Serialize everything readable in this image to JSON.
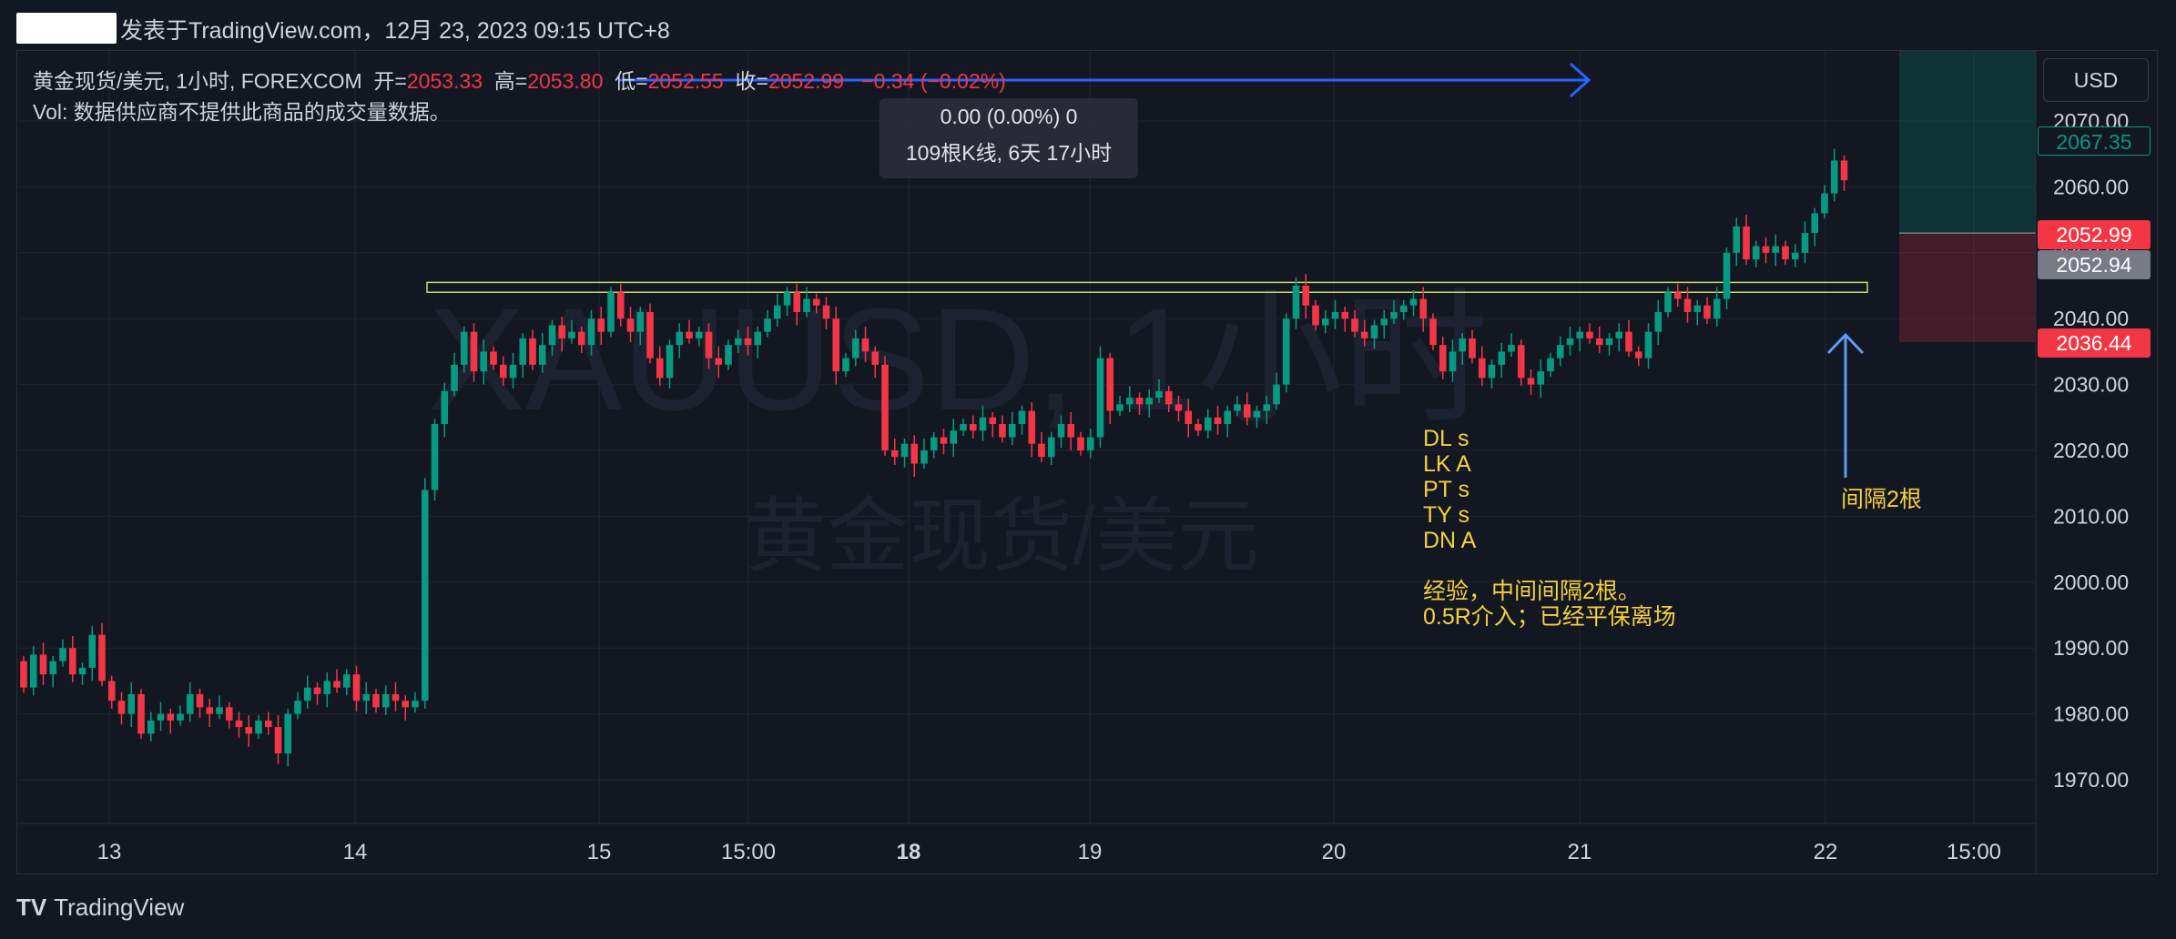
{
  "header": {
    "publish_text": "发表于TradingView.com，12月 23, 2023 09:15 UTC+8"
  },
  "legend": {
    "symbol": "黄金现货/美元, 1小时, FOREXCOM",
    "open_label": "开=",
    "open": "2053.33",
    "high_label": "高=",
    "high": "2053.80",
    "low_label": "低=",
    "low": "2052.55",
    "close_label": "收=",
    "close": "2052.99",
    "change": "−0.34 (−0.02%)",
    "vol_line": "Vol: 数据供应商不提供此商品的成交量数据。"
  },
  "measure": {
    "line1": "0.00 (0.00%) 0",
    "line2": "109根K线, 6天 17小时"
  },
  "toolbar": {
    "currency": "USD"
  },
  "watermark": {
    "symbol": "XAUUSD, 1小时",
    "name": "黄金现货/美元"
  },
  "price_labels": {
    "current_last": "2067.35",
    "entry": "2052.99",
    "stop_mark": "2052.94",
    "stop": "2036.44"
  },
  "notes": "DL s\nLK A\nPT s\nTY s\nDN A\n\n经验，中间间隔2根。\n0.5R介入；已经平保离场",
  "gap_label": "间隔2根",
  "footer": {
    "brand": "TradingView"
  },
  "colors": {
    "up": "#089981",
    "down": "#f23645",
    "background": "#131722",
    "grid": "#1f2430",
    "annotation": "#f4d03f",
    "arrow": "#2962ff"
  },
  "chart_data": {
    "type": "candlestick",
    "symbol": "XAUUSD",
    "timeframe": "1H",
    "ylim": [
      1960,
      2075
    ],
    "y_ticks": [
      2070,
      2060,
      2050,
      2040,
      2030,
      2020,
      2010,
      2000,
      1990,
      1980,
      1970
    ],
    "y_tick_labels": [
      "2070.00",
      "2060.00",
      "2050.00",
      "2040.00",
      "2030.00",
      "2020.00",
      "2010.00",
      "2000.00",
      "1990.00",
      "1980.00",
      "1970.00"
    ],
    "x_tick_labels": [
      "13",
      "14",
      "15",
      "15:00",
      "18",
      "19",
      "20",
      "21",
      "22",
      "15:00"
    ],
    "resistance_zone": [
      2044,
      2045.5
    ],
    "long_position": {
      "entry": 2052.99,
      "target": 2075,
      "stop": 2036.44
    },
    "bars": [
      [
        1988,
        1984
      ],
      [
        1984,
        1989
      ],
      [
        1989,
        1986
      ],
      [
        1986,
        1988
      ],
      [
        1988,
        1990
      ],
      [
        1990,
        1986
      ],
      [
        1986,
        1987
      ],
      [
        1987,
        1992
      ],
      [
        1992,
        1985
      ],
      [
        1985,
        1982
      ],
      [
        1982,
        1980
      ],
      [
        1980,
        1983
      ],
      [
        1983,
        1977
      ],
      [
        1977,
        1979
      ],
      [
        1979,
        1980
      ],
      [
        1980,
        1979
      ],
      [
        1979,
        1980
      ],
      [
        1980,
        1983
      ],
      [
        1983,
        1981
      ],
      [
        1981,
        1980
      ],
      [
        1980,
        1981
      ],
      [
        1981,
        1979
      ],
      [
        1979,
        1978
      ],
      [
        1978,
        1977
      ],
      [
        1977,
        1979
      ],
      [
        1979,
        1978
      ],
      [
        1978,
        1974
      ],
      [
        1974,
        1980
      ],
      [
        1980,
        1982
      ],
      [
        1982,
        1984
      ],
      [
        1984,
        1983
      ],
      [
        1983,
        1985
      ],
      [
        1985,
        1984
      ],
      [
        1984,
        1986
      ],
      [
        1986,
        1982
      ],
      [
        1982,
        1983
      ],
      [
        1983,
        1981
      ],
      [
        1981,
        1983
      ],
      [
        1983,
        1982
      ],
      [
        1982,
        1981
      ],
      [
        1981,
        1982
      ],
      [
        1982,
        2014
      ],
      [
        2014,
        2024
      ],
      [
        2024,
        2029
      ],
      [
        2029,
        2033
      ],
      [
        2033,
        2038
      ],
      [
        2038,
        2032
      ],
      [
        2032,
        2035
      ],
      [
        2035,
        2033
      ],
      [
        2033,
        2031
      ],
      [
        2031,
        2033
      ],
      [
        2033,
        2037
      ],
      [
        2037,
        2033
      ],
      [
        2033,
        2036
      ],
      [
        2036,
        2039
      ],
      [
        2039,
        2037
      ],
      [
        2037,
        2038
      ],
      [
        2038,
        2036
      ],
      [
        2036,
        2040
      ],
      [
        2040,
        2038
      ],
      [
        2038,
        2044
      ],
      [
        2044,
        2040
      ],
      [
        2040,
        2038
      ],
      [
        2038,
        2041
      ],
      [
        2041,
        2034
      ],
      [
        2034,
        2031
      ],
      [
        2031,
        2036
      ],
      [
        2036,
        2038
      ],
      [
        2038,
        2037
      ],
      [
        2037,
        2038
      ],
      [
        2038,
        2034
      ],
      [
        2034,
        2033
      ],
      [
        2033,
        2036
      ],
      [
        2036,
        2037
      ],
      [
        2037,
        2036
      ],
      [
        2036,
        2038
      ],
      [
        2038,
        2040
      ],
      [
        2040,
        2042
      ],
      [
        2042,
        2044
      ],
      [
        2044,
        2041
      ],
      [
        2041,
        2043
      ],
      [
        2043,
        2042
      ],
      [
        2042,
        2040
      ],
      [
        2040,
        2032
      ],
      [
        2032,
        2034
      ],
      [
        2034,
        2037
      ],
      [
        2037,
        2035
      ],
      [
        2035,
        2033
      ],
      [
        2033,
        2020
      ],
      [
        2020,
        2019
      ],
      [
        2019,
        2021
      ],
      [
        2021,
        2018
      ],
      [
        2018,
        2020
      ],
      [
        2020,
        2022
      ],
      [
        2022,
        2021
      ],
      [
        2021,
        2023
      ],
      [
        2023,
        2024
      ],
      [
        2024,
        2023
      ],
      [
        2023,
        2025
      ],
      [
        2025,
        2024
      ],
      [
        2024,
        2022
      ],
      [
        2022,
        2024
      ],
      [
        2024,
        2026
      ],
      [
        2026,
        2021
      ],
      [
        2021,
        2019
      ],
      [
        2019,
        2022
      ],
      [
        2022,
        2024
      ],
      [
        2024,
        2022
      ],
      [
        2022,
        2020
      ],
      [
        2020,
        2022
      ],
      [
        2022,
        2034
      ],
      [
        2034,
        2026
      ],
      [
        2026,
        2027
      ],
      [
        2027,
        2028
      ],
      [
        2028,
        2027
      ],
      [
        2027,
        2028
      ],
      [
        2028,
        2029
      ],
      [
        2029,
        2027
      ],
      [
        2027,
        2026
      ],
      [
        2026,
        2024
      ],
      [
        2024,
        2023
      ],
      [
        2023,
        2025
      ],
      [
        2025,
        2024
      ],
      [
        2024,
        2026
      ],
      [
        2026,
        2027
      ],
      [
        2027,
        2025
      ],
      [
        2025,
        2026
      ],
      [
        2026,
        2027
      ],
      [
        2027,
        2030
      ],
      [
        2030,
        2040
      ],
      [
        2040,
        2045
      ],
      [
        2045,
        2042
      ],
      [
        2042,
        2039
      ],
      [
        2039,
        2040
      ],
      [
        2040,
        2041
      ],
      [
        2041,
        2040
      ],
      [
        2040,
        2038
      ],
      [
        2038,
        2037
      ],
      [
        2037,
        2039
      ],
      [
        2039,
        2040
      ],
      [
        2040,
        2041
      ],
      [
        2041,
        2042
      ],
      [
        2042,
        2043
      ],
      [
        2043,
        2040
      ],
      [
        2040,
        2036
      ],
      [
        2036,
        2032
      ],
      [
        2032,
        2035
      ],
      [
        2035,
        2037
      ],
      [
        2037,
        2034
      ],
      [
        2034,
        2031
      ],
      [
        2031,
        2033
      ],
      [
        2033,
        2035
      ],
      [
        2035,
        2036
      ],
      [
        2036,
        2031
      ],
      [
        2031,
        2030
      ],
      [
        2030,
        2032
      ],
      [
        2032,
        2034
      ],
      [
        2034,
        2036
      ],
      [
        2036,
        2037
      ],
      [
        2037,
        2038
      ],
      [
        2038,
        2037
      ],
      [
        2037,
        2036
      ],
      [
        2036,
        2037
      ],
      [
        2037,
        2038
      ],
      [
        2038,
        2035
      ],
      [
        2035,
        2034
      ],
      [
        2034,
        2038
      ],
      [
        2038,
        2041
      ],
      [
        2041,
        2044
      ],
      [
        2044,
        2043
      ],
      [
        2043,
        2041
      ],
      [
        2041,
        2042
      ],
      [
        2042,
        2040
      ],
      [
        2040,
        2043
      ],
      [
        2043,
        2050
      ],
      [
        2050,
        2054
      ],
      [
        2054,
        2049
      ],
      [
        2049,
        2051
      ],
      [
        2051,
        2050
      ],
      [
        2050,
        2051
      ],
      [
        2051,
        2049
      ],
      [
        2049,
        2050
      ],
      [
        2050,
        2053
      ],
      [
        2053,
        2056
      ],
      [
        2056,
        2059
      ],
      [
        2059,
        2064
      ],
      [
        2064,
        2061
      ]
    ]
  }
}
